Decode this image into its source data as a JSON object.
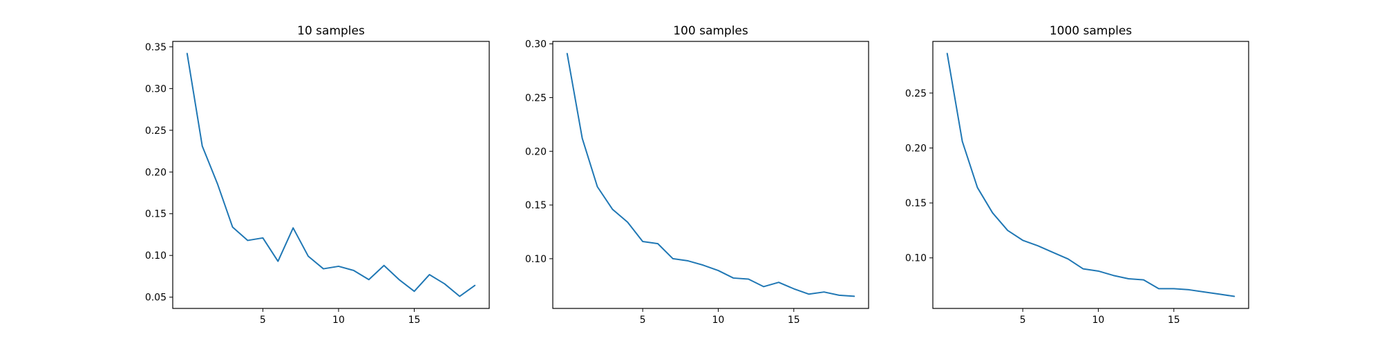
{
  "chart_data": [
    {
      "type": "line",
      "title": "10 samples",
      "xlabel": "",
      "ylabel": "",
      "x": [
        0,
        1,
        2,
        3,
        4,
        5,
        6,
        7,
        8,
        9,
        10,
        11,
        12,
        13,
        14,
        15,
        16,
        17,
        18,
        19
      ],
      "series": [
        {
          "color": "#1f77b4",
          "values": [
            0.342,
            0.231,
            0.186,
            0.134,
            0.118,
            0.121,
            0.093,
            0.133,
            0.099,
            0.084,
            0.087,
            0.082,
            0.071,
            0.088,
            0.071,
            0.057,
            0.077,
            0.066,
            0.051,
            0.064
          ]
        }
      ],
      "xlim": [
        -0.95,
        19.95
      ],
      "ylim": [
        0.0365,
        0.3565
      ],
      "xticks": [
        5,
        10,
        15
      ],
      "xtick_labels": [
        "5",
        "10",
        "15"
      ],
      "yticks": [
        0.05,
        0.1,
        0.15,
        0.2,
        0.25,
        0.3,
        0.35
      ],
      "ytick_labels": [
        "0.05",
        "0.10",
        "0.15",
        "0.20",
        "0.25",
        "0.30",
        "0.35"
      ],
      "grid": false
    },
    {
      "type": "line",
      "title": "100 samples",
      "xlabel": "",
      "ylabel": "",
      "x": [
        0,
        1,
        2,
        3,
        4,
        5,
        6,
        7,
        8,
        9,
        10,
        11,
        12,
        13,
        14,
        15,
        16,
        17,
        18,
        19
      ],
      "series": [
        {
          "color": "#1f77b4",
          "values": [
            0.291,
            0.212,
            0.167,
            0.146,
            0.134,
            0.116,
            0.114,
            0.1,
            0.098,
            0.094,
            0.089,
            0.082,
            0.081,
            0.074,
            0.078,
            0.072,
            0.067,
            0.069,
            0.066,
            0.065
          ]
        }
      ],
      "xlim": [
        -0.95,
        19.95
      ],
      "ylim": [
        0.0537,
        0.3023
      ],
      "xticks": [
        5,
        10,
        15
      ],
      "xtick_labels": [
        "5",
        "10",
        "15"
      ],
      "yticks": [
        0.1,
        0.15,
        0.2,
        0.25,
        0.3
      ],
      "ytick_labels": [
        "0.10",
        "0.15",
        "0.20",
        "0.25",
        "0.30"
      ],
      "grid": false
    },
    {
      "type": "line",
      "title": "1000 samples",
      "xlabel": "",
      "ylabel": "",
      "x": [
        0,
        1,
        2,
        3,
        4,
        5,
        6,
        7,
        8,
        9,
        10,
        11,
        12,
        13,
        14,
        15,
        16,
        17,
        18,
        19
      ],
      "series": [
        {
          "color": "#1f77b4",
          "values": [
            0.286,
            0.206,
            0.164,
            0.141,
            0.125,
            0.116,
            0.111,
            0.105,
            0.099,
            0.09,
            0.088,
            0.084,
            0.081,
            0.08,
            0.072,
            0.072,
            0.071,
            0.069,
            0.067,
            0.065
          ]
        }
      ],
      "xlim": [
        -0.95,
        19.95
      ],
      "ylim": [
        0.054,
        0.297
      ],
      "xticks": [
        5,
        10,
        15
      ],
      "xtick_labels": [
        "5",
        "10",
        "15"
      ],
      "yticks": [
        0.1,
        0.15,
        0.2,
        0.25
      ],
      "ytick_labels": [
        "0.10",
        "0.15",
        "0.20",
        "0.25"
      ],
      "grid": false
    }
  ]
}
